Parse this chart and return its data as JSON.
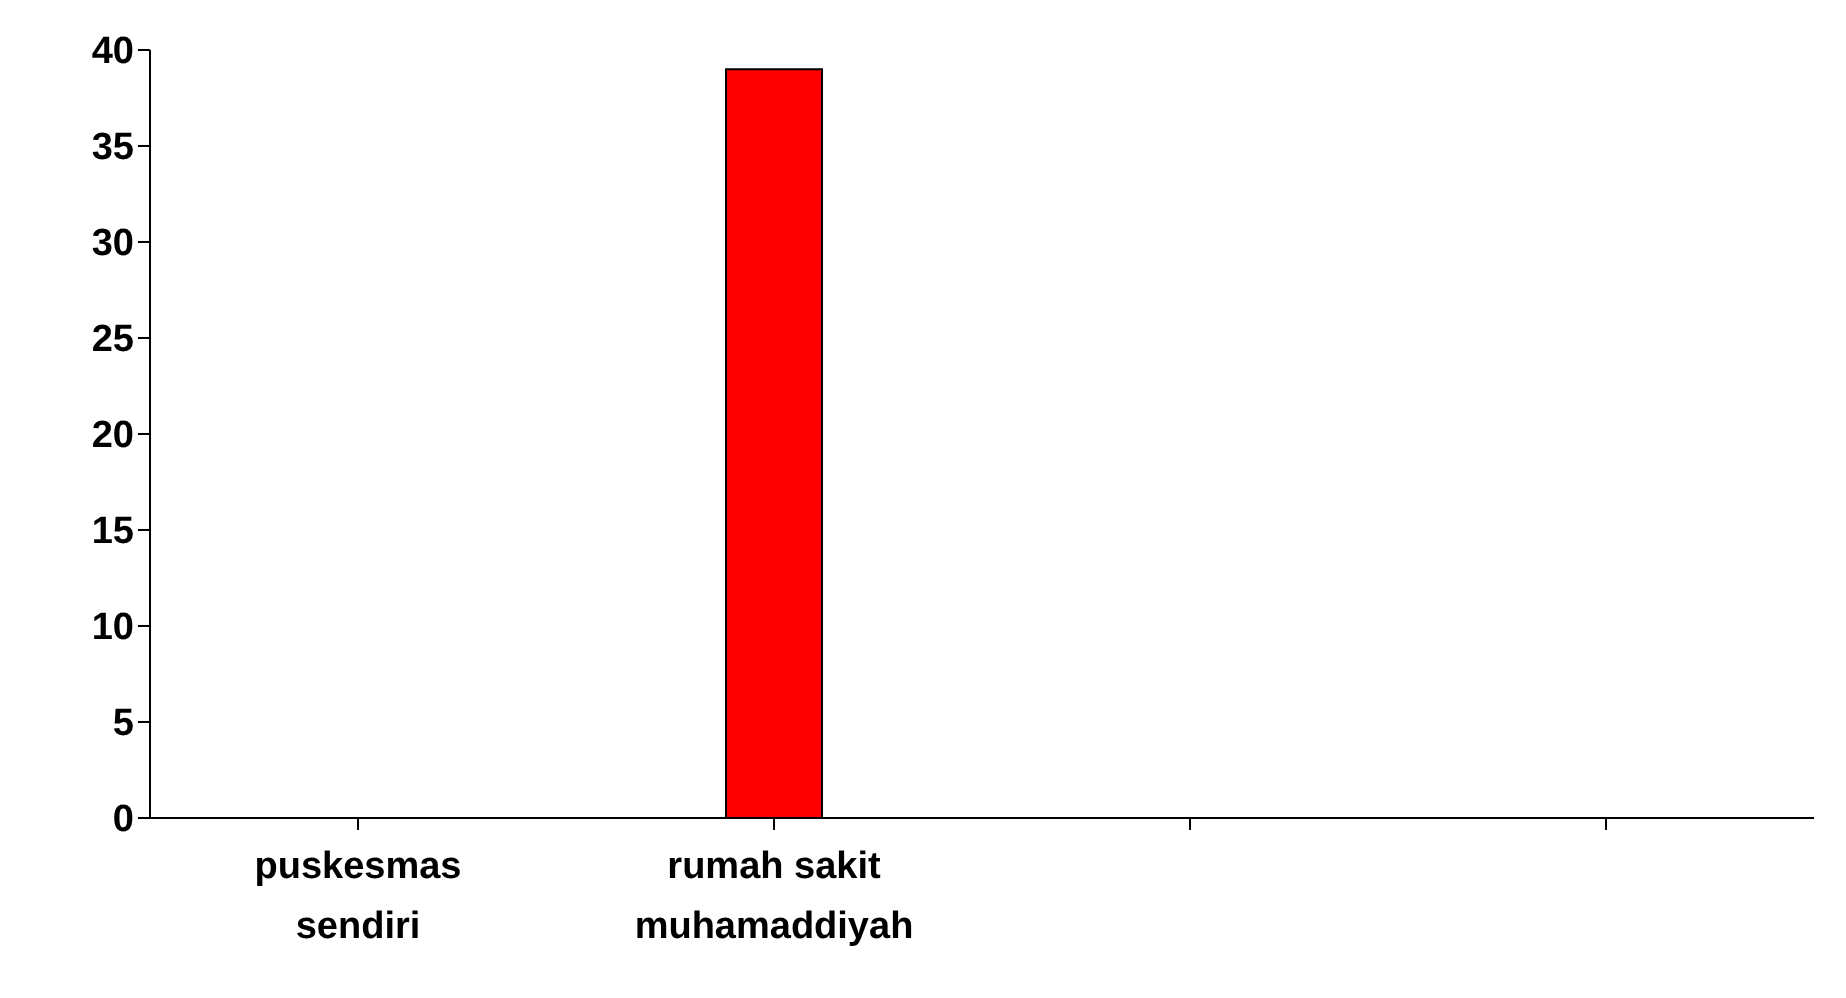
{
  "chart_data": {
    "type": "bar",
    "categories": [
      "puskesmas sendiri",
      "rumah sakit muhamaddiyah",
      null,
      null
    ],
    "values": [
      0,
      39,
      null,
      null
    ],
    "colors": [
      "#7777dd",
      "#ff0000",
      "#7777dd",
      "#ff0000"
    ],
    "ylim": [
      0,
      40
    ],
    "yticks": [
      0,
      5,
      10,
      15,
      20,
      25,
      30,
      35,
      40
    ],
    "grid": false,
    "legend": false
  }
}
